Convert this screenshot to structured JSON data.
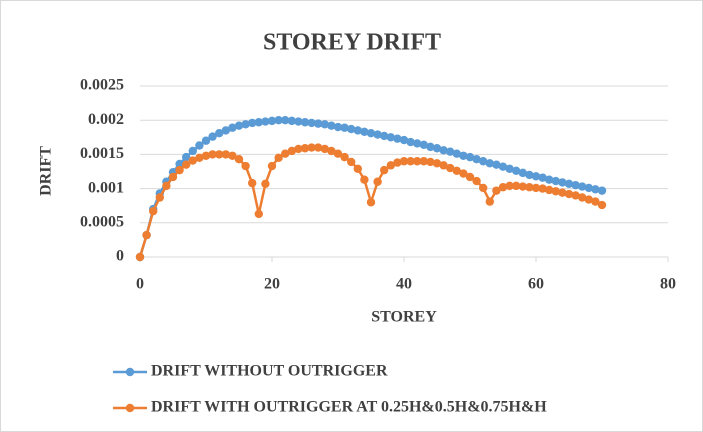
{
  "chart_data": {
    "type": "line",
    "title": "STOREY DRIFT",
    "x_label": "STOREY",
    "y_label": "DRIFT",
    "x": [
      0,
      1,
      2,
      3,
      4,
      5,
      6,
      7,
      8,
      9,
      10,
      11,
      12,
      13,
      14,
      15,
      16,
      17,
      18,
      19,
      20,
      21,
      22,
      23,
      24,
      25,
      26,
      27,
      28,
      29,
      30,
      31,
      32,
      33,
      34,
      35,
      36,
      37,
      38,
      39,
      40,
      41,
      42,
      43,
      44,
      45,
      46,
      47,
      48,
      49,
      50,
      51,
      52,
      53,
      54,
      55,
      56,
      57,
      58,
      59,
      60,
      61,
      62,
      63,
      64,
      65,
      66,
      67,
      68,
      69,
      70
    ],
    "series": [
      {
        "name": "DRIFT WITHOUT OUTRIGGER",
        "color": "#5b9bd5",
        "values": [
          0,
          0.00032,
          0.0007,
          0.00093,
          0.0011,
          0.00124,
          0.00136,
          0.00146,
          0.00155,
          0.00163,
          0.0017,
          0.00176,
          0.00181,
          0.00185,
          0.00189,
          0.00192,
          0.00194,
          0.00196,
          0.00197,
          0.00198,
          0.00199,
          0.002,
          0.002,
          0.00199,
          0.00198,
          0.00197,
          0.00196,
          0.00195,
          0.00194,
          0.00192,
          0.0019,
          0.00189,
          0.00187,
          0.00185,
          0.00183,
          0.00181,
          0.00179,
          0.00177,
          0.00175,
          0.00173,
          0.00171,
          0.00168,
          0.00166,
          0.00164,
          0.00161,
          0.00159,
          0.00156,
          0.00154,
          0.00151,
          0.00148,
          0.00146,
          0.00143,
          0.0014,
          0.00137,
          0.00135,
          0.00132,
          0.00129,
          0.00126,
          0.00123,
          0.0012,
          0.00118,
          0.00116,
          0.00113,
          0.00111,
          0.00109,
          0.00107,
          0.00105,
          0.00103,
          0.00101,
          0.00099,
          0.00097
        ]
      },
      {
        "name": "DRIFT WITH OUTRIGGER AT 0.25H&0.5H&0.75H&H",
        "color": "#ed7d31",
        "values": [
          0,
          0.00032,
          0.00067,
          0.00087,
          0.00104,
          0.00117,
          0.00127,
          0.00135,
          0.00141,
          0.00145,
          0.00148,
          0.0015,
          0.0015,
          0.0015,
          0.00148,
          0.00143,
          0.00133,
          0.00108,
          0.00063,
          0.00107,
          0.00133,
          0.00145,
          0.00151,
          0.00155,
          0.00158,
          0.00159,
          0.0016,
          0.0016,
          0.00158,
          0.00155,
          0.00151,
          0.00146,
          0.00139,
          0.00129,
          0.00113,
          0.0008,
          0.0011,
          0.00127,
          0.00134,
          0.00138,
          0.0014,
          0.0014,
          0.0014,
          0.0014,
          0.00139,
          0.00137,
          0.00134,
          0.0013,
          0.00126,
          0.00122,
          0.00117,
          0.00111,
          0.00101,
          0.00081,
          0.00097,
          0.00102,
          0.00104,
          0.00104,
          0.00103,
          0.00102,
          0.00101,
          0.001,
          0.00098,
          0.00096,
          0.00094,
          0.00092,
          0.0009,
          0.00087,
          0.00084,
          0.00081,
          0.00076
        ]
      }
    ],
    "xlim": [
      0,
      80
    ],
    "xticks": [
      0,
      20,
      40,
      60,
      80
    ],
    "ylim": [
      0,
      0.0025
    ],
    "yticks": [
      0,
      0.0005,
      0.001,
      0.0015,
      0.002,
      0.0025
    ],
    "grid": true,
    "legend": "bottom"
  }
}
